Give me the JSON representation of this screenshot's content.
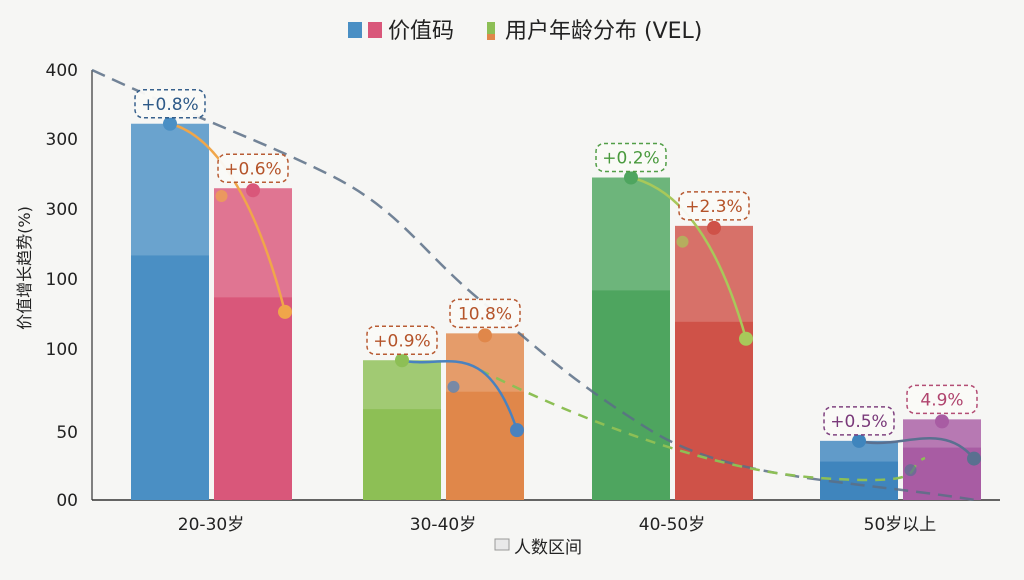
{
  "chart_data": {
    "type": "bar",
    "title": "价值码",
    "title_suffix": "用户年龄分布 (VEL)",
    "xlabel": "人数区间",
    "ylabel": "价值增长趋势(%)",
    "categories": [
      "20-30岁",
      "30-40岁",
      "40-50岁",
      "50岁以上"
    ],
    "y_tick_labels": [
      "00",
      "50",
      "100",
      "100",
      "300",
      "300",
      "400"
    ],
    "ylim": [
      0,
      400
    ],
    "grid": false,
    "series": [
      {
        "values": [
          350,
          130,
          300,
          55
        ]
      },
      {
        "values": [
          290,
          155,
          255,
          75
        ]
      }
    ],
    "bar_colors": [
      [
        "#4a8fc4",
        "#d9577a"
      ],
      [
        "#8dbf55",
        "#e0874a"
      ],
      [
        "#4ea55f",
        "#cf5248"
      ],
      [
        "#3f85bd",
        "#a85ca3"
      ]
    ],
    "annotations": [
      [
        "+0.8%",
        "+0.6%"
      ],
      [
        "+0.9%",
        "10.8%"
      ],
      [
        "+0.2%",
        "+2.3%"
      ],
      [
        "+0.5%",
        "4.9%"
      ]
    ],
    "annotation_colors": [
      "#2e5a88",
      "#b5542a",
      "#4a9a3e",
      "#7a3a7a"
    ],
    "trend_line_colors": [
      "#f0a64a",
      "#4a82bf",
      "#a8c85a",
      "#5a7090"
    ]
  }
}
